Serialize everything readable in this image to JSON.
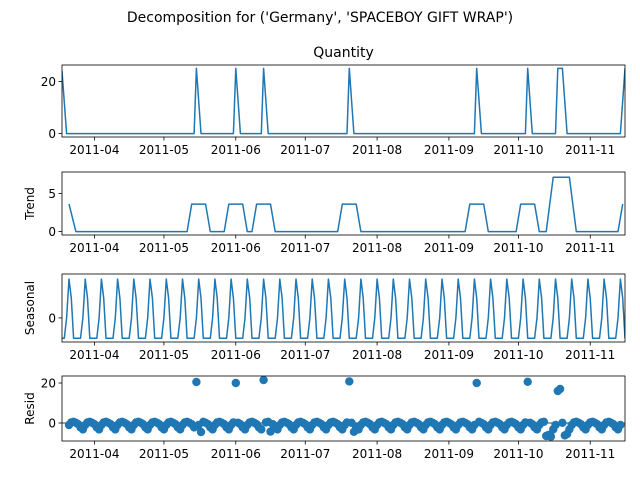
{
  "figure": {
    "suptitle": "Decomposition for ('Germany', 'SPACEBOY GIFT WRAP')"
  },
  "chart_data": [
    {
      "type": "line",
      "title": "Quantity",
      "ylabel": "",
      "color": "#1f77b4",
      "xlim": [
        "2011-03-18",
        "2011-11-16"
      ],
      "ylim": [
        -1.3,
        26.3
      ],
      "yticks": [
        0,
        20
      ],
      "xticks": [
        "2011-04",
        "2011-05",
        "2011-06",
        "2011-07",
        "2011-08",
        "2011-09",
        "2011-10",
        "2011-11"
      ],
      "x": [
        "2011-03-18",
        "2011-03-20",
        "2011-05-14",
        "2011-05-15",
        "2011-05-17",
        "2011-05-31",
        "2011-06-01",
        "2011-06-03",
        "2011-06-12",
        "2011-06-13",
        "2011-06-15",
        "2011-07-19",
        "2011-07-20",
        "2011-07-22",
        "2011-09-12",
        "2011-09-13",
        "2011-09-15",
        "2011-10-04",
        "2011-10-05",
        "2011-10-07",
        "2011-10-17",
        "2011-10-18",
        "2011-10-19",
        "2011-10-20",
        "2011-10-22",
        "2011-11-14",
        "2011-11-16"
      ],
      "y": [
        24,
        0,
        0,
        25,
        0,
        0,
        25,
        0,
        0,
        25,
        0,
        0,
        25,
        0,
        0,
        25,
        0,
        0,
        25,
        0,
        0,
        25,
        25,
        25,
        0,
        0,
        25
      ]
    },
    {
      "type": "line",
      "title": "",
      "ylabel": "Trend",
      "color": "#1f77b4",
      "xlim": [
        "2011-03-18",
        "2011-11-16"
      ],
      "ylim": [
        -0.45,
        7.8
      ],
      "yticks": [
        0,
        5
      ],
      "xticks": [
        "2011-04",
        "2011-05",
        "2011-06",
        "2011-07",
        "2011-08",
        "2011-09",
        "2011-10",
        "2011-11"
      ],
      "x": [
        "2011-03-21",
        "2011-03-24",
        "2011-05-11",
        "2011-05-13",
        "2011-05-19",
        "2011-05-21",
        "2011-05-27",
        "2011-05-29",
        "2011-06-04",
        "2011-06-06",
        "2011-06-08",
        "2011-06-10",
        "2011-06-16",
        "2011-06-18",
        "2011-07-15",
        "2011-07-17",
        "2011-07-23",
        "2011-07-25",
        "2011-09-08",
        "2011-09-10",
        "2011-09-16",
        "2011-09-18",
        "2011-09-30",
        "2011-10-02",
        "2011-10-08",
        "2011-10-10",
        "2011-10-13",
        "2011-10-16",
        "2011-10-23",
        "2011-10-26",
        "2011-11-13",
        "2011-11-15"
      ],
      "y": [
        3.6,
        0,
        0,
        3.6,
        3.6,
        0,
        0,
        3.6,
        3.6,
        0,
        0,
        3.6,
        3.6,
        0,
        0,
        3.6,
        3.6,
        0,
        0,
        3.6,
        3.6,
        0,
        0,
        3.6,
        3.6,
        0,
        0,
        7.1,
        7.1,
        0,
        0,
        3.6
      ]
    },
    {
      "type": "line",
      "title": "",
      "ylabel": "Seasonal",
      "color": "#1f77b4",
      "xlim": [
        "2011-03-18",
        "2011-11-16"
      ],
      "ylim": [
        -0.85,
        1.55
      ],
      "yticks": [
        0
      ],
      "xticks": [
        "2011-04",
        "2011-05",
        "2011-06",
        "2011-07",
        "2011-08",
        "2011-09",
        "2011-10",
        "2011-11"
      ],
      "start": "2011-03-18",
      "end": "2011-11-16",
      "period_days": 7,
      "pattern": [
        -0.72,
        -0.72,
        0.0,
        1.37,
        0.7,
        -0.72,
        -0.72
      ]
    },
    {
      "type": "scatter",
      "title": "",
      "ylabel": "Resid",
      "color": "#1f77b4",
      "xlim": [
        "2011-03-18",
        "2011-11-16"
      ],
      "ylim": [
        -9,
        23.5
      ],
      "yticks": [
        0,
        20
      ],
      "xticks": [
        "2011-04",
        "2011-05",
        "2011-06",
        "2011-07",
        "2011-08",
        "2011-09",
        "2011-10",
        "2011-11"
      ],
      "start": "2011-03-21",
      "end": "2011-11-14",
      "base_pattern": [
        -1.0,
        0.3,
        0.6,
        0.1,
        -0.6,
        -2.2,
        -3.2
      ],
      "outliers": [
        {
          "date": "2011-05-15",
          "value": 20.5
        },
        {
          "date": "2011-06-01",
          "value": 20.0
        },
        {
          "date": "2011-06-13",
          "value": 21.5
        },
        {
          "date": "2011-07-20",
          "value": 20.8
        },
        {
          "date": "2011-09-13",
          "value": 20.0
        },
        {
          "date": "2011-10-05",
          "value": 20.6
        },
        {
          "date": "2011-10-18",
          "value": 16.0
        },
        {
          "date": "2011-10-19",
          "value": 17.0
        },
        {
          "date": "2011-10-13",
          "value": -6.5
        },
        {
          "date": "2011-10-14",
          "value": -6.0
        },
        {
          "date": "2011-10-15",
          "value": -6.8
        },
        {
          "date": "2011-10-21",
          "value": -6.2
        },
        {
          "date": "2011-10-22",
          "value": -5.5
        },
        {
          "date": "2011-05-17",
          "value": -4.5
        },
        {
          "date": "2011-06-16",
          "value": -4.3
        },
        {
          "date": "2011-07-22",
          "value": -4.4
        }
      ]
    }
  ]
}
